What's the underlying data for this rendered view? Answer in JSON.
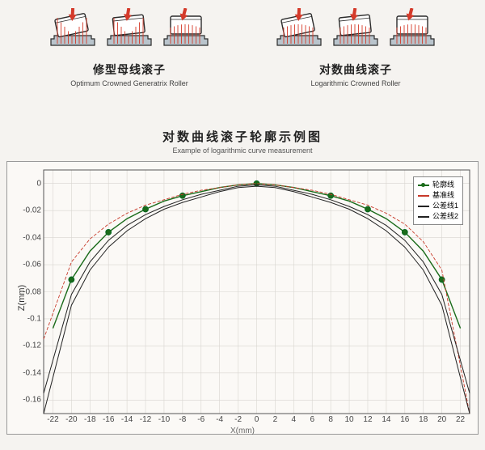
{
  "top": {
    "left": {
      "label_cn": "修型母线滚子",
      "label_en": "Optimum Crowned Generatrix Roller",
      "diagrams": [
        {
          "tilt": -12,
          "arrow_offset": 0.55
        },
        {
          "tilt": -6,
          "arrow_offset": 0.5
        },
        {
          "tilt": 0,
          "arrow_offset": 0.5
        }
      ]
    },
    "right": {
      "label_cn": "对数曲线滚子",
      "label_en": "Logarithmic Crowned Roller",
      "diagrams": [
        {
          "tilt": -12,
          "arrow_offset": 0.55
        },
        {
          "tilt": -6,
          "arrow_offset": 0.5
        },
        {
          "tilt": 0,
          "arrow_offset": 0.5
        }
      ]
    },
    "colors": {
      "outline": "#2b2b2b",
      "race_fill": "#b9c4cc",
      "load_lines": "#d43a2a",
      "arrow": "#d43a2a"
    }
  },
  "chart": {
    "title_cn": "对数曲线滚子轮廓示例图",
    "title_en": "Example of logarithmic curve measurement",
    "xlabel": "X(mm)",
    "ylabel": "Z(mm)",
    "background": "#fbf9f6",
    "border_color": "#999999",
    "grid_color": "#d8d5d0",
    "xlim": [
      -23,
      23
    ],
    "ylim": [
      -0.17,
      0.01
    ],
    "xticks": [
      -22,
      -20,
      -18,
      -16,
      -14,
      -12,
      -10,
      -8,
      -6,
      -4,
      -2,
      0,
      2,
      4,
      6,
      8,
      10,
      12,
      14,
      16,
      18,
      20,
      22
    ],
    "yticks": [
      0,
      -0.02,
      -0.04,
      -0.06,
      -0.08,
      -0.1,
      -0.12,
      -0.14,
      -0.16
    ],
    "series": [
      {
        "name": "轮廓线",
        "color": "#1a6b1a",
        "width": 1.4,
        "marker": "circle",
        "marker_size": 5,
        "marker_fill": "#1a6b1a",
        "x": [
          -22,
          -20,
          -18,
          -16,
          -14,
          -12,
          -10,
          -8,
          -6,
          -4,
          -2,
          0,
          2,
          4,
          6,
          8,
          10,
          12,
          14,
          16,
          18,
          20,
          22
        ],
        "y": [
          -0.107,
          -0.071,
          -0.05,
          -0.036,
          -0.026,
          -0.019,
          -0.013,
          -0.009,
          -0.006,
          -0.003,
          -0.001,
          0,
          -0.001,
          -0.003,
          -0.006,
          -0.009,
          -0.013,
          -0.019,
          -0.026,
          -0.036,
          -0.05,
          -0.071,
          -0.107
        ],
        "marker_x": [
          -20,
          -16,
          -12,
          -8,
          0,
          8,
          12,
          16,
          20
        ],
        "marker_y": [
          -0.071,
          -0.036,
          -0.019,
          -0.009,
          0,
          -0.009,
          -0.019,
          -0.036,
          -0.071
        ]
      },
      {
        "name": "基准线",
        "color": "#c83a2a",
        "width": 0.9,
        "dash": "4 2",
        "x": [
          -23,
          -20,
          -18,
          -16,
          -14,
          -12,
          -10,
          -8,
          -6,
          -4,
          -2,
          0,
          2,
          4,
          6,
          8,
          10,
          12,
          14,
          16,
          18,
          20,
          23
        ],
        "y": [
          -0.115,
          -0.058,
          -0.041,
          -0.03,
          -0.022,
          -0.016,
          -0.012,
          -0.008,
          -0.005,
          -0.003,
          -0.001,
          0,
          -0.001,
          -0.003,
          -0.005,
          -0.008,
          -0.012,
          -0.016,
          -0.022,
          -0.03,
          -0.043,
          -0.064,
          -0.17
        ]
      },
      {
        "name": "公差线1",
        "color": "#222222",
        "width": 1.0,
        "x": [
          -23,
          -20,
          -18,
          -16,
          -14,
          -12,
          -10,
          -8,
          -6,
          -4,
          -2,
          0,
          2,
          4,
          6,
          8,
          10,
          12,
          14,
          16,
          18,
          20,
          23
        ],
        "y": [
          -0.155,
          -0.082,
          -0.058,
          -0.042,
          -0.031,
          -0.023,
          -0.017,
          -0.012,
          -0.008,
          -0.005,
          -0.002,
          -0.001,
          -0.002,
          -0.005,
          -0.008,
          -0.012,
          -0.017,
          -0.023,
          -0.031,
          -0.042,
          -0.058,
          -0.082,
          -0.155
        ]
      },
      {
        "name": "公差线2",
        "color": "#222222",
        "width": 1.0,
        "x": [
          -23,
          -20,
          -18,
          -16,
          -14,
          -12,
          -10,
          -8,
          -6,
          -4,
          -2,
          0,
          2,
          4,
          6,
          8,
          10,
          12,
          14,
          16,
          18,
          20,
          23
        ],
        "y": [
          -0.17,
          -0.09,
          -0.064,
          -0.047,
          -0.035,
          -0.026,
          -0.019,
          -0.014,
          -0.01,
          -0.006,
          -0.003,
          -0.002,
          -0.003,
          -0.006,
          -0.01,
          -0.014,
          -0.019,
          -0.026,
          -0.035,
          -0.047,
          -0.064,
          -0.09,
          -0.17
        ]
      }
    ],
    "legend": {
      "position": "top-right",
      "items": [
        "轮廓线",
        "基准线",
        "公差线1",
        "公差线2"
      ]
    },
    "font_size_ticks": 10,
    "font_size_label": 11
  }
}
